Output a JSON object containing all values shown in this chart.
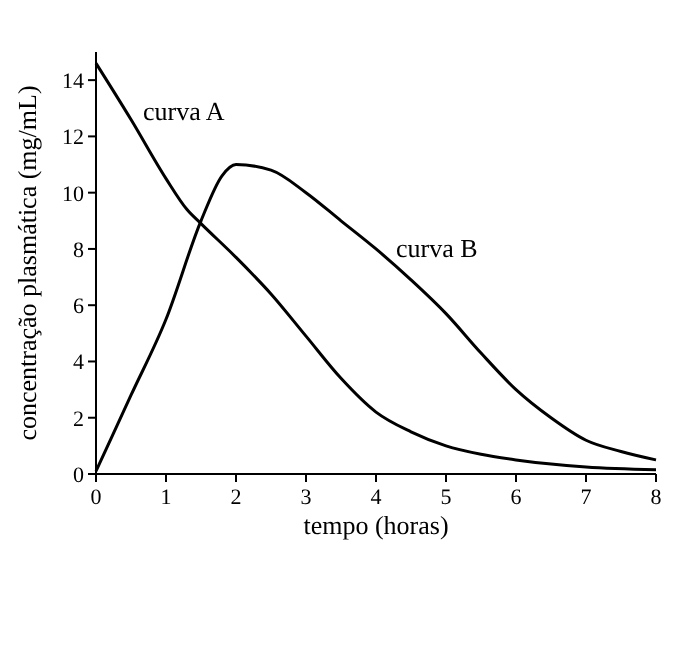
{
  "chart_data": {
    "type": "line",
    "xlabel": "tempo (horas)",
    "ylabel": "concentração plasmática (mg/mL)",
    "xlim": [
      0,
      8
    ],
    "ylim": [
      0,
      15
    ],
    "xticks": [
      0,
      1,
      2,
      3,
      4,
      5,
      6,
      7,
      8
    ],
    "yticks": [
      0,
      2,
      4,
      6,
      8,
      10,
      12,
      14
    ],
    "grid": false,
    "legend": false,
    "marker": "none",
    "line_style": "solid",
    "series": [
      {
        "name": "curva A",
        "color": "#000000",
        "x": [
          0,
          0.5,
          1,
          1.3,
          1.5,
          2,
          2.5,
          3,
          3.5,
          4,
          4.5,
          5,
          5.5,
          6,
          7,
          8
        ],
        "values": [
          14.6,
          12.6,
          10.5,
          9.4,
          8.9,
          7.7,
          6.4,
          4.9,
          3.4,
          2.2,
          1.5,
          1.0,
          0.7,
          0.5,
          0.25,
          0.15
        ]
      },
      {
        "name": "curva B",
        "color": "#000000",
        "x": [
          0,
          0.5,
          1,
          1.5,
          1.8,
          2,
          2.5,
          3,
          3.5,
          4,
          4.5,
          5,
          5.5,
          6,
          6.5,
          7,
          7.5,
          8
        ],
        "values": [
          0.1,
          2.8,
          5.5,
          9.0,
          10.6,
          11,
          10.8,
          10,
          9.0,
          8,
          6.9,
          5.7,
          4.3,
          3.0,
          2.0,
          1.2,
          0.8,
          0.5
        ]
      }
    ]
  }
}
